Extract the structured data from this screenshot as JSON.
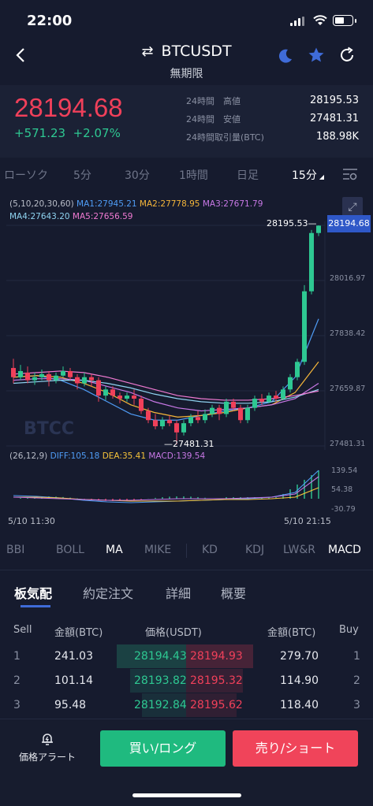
{
  "status_bar": {
    "time": "22:00"
  },
  "header": {
    "title": "BTCUSDT",
    "subtitle": "無期限"
  },
  "ticker": {
    "last_price": "28194.68",
    "change_abs": "+571.23",
    "change_pct": "+2.07%",
    "stats": [
      {
        "label": "24時間　高値",
        "value": "28195.53"
      },
      {
        "label": "24時間　安値",
        "value": "27481.31"
      },
      {
        "label": "24時間取引量(BTC)",
        "value": "188.98K"
      }
    ]
  },
  "timeframes": [
    "ローソク",
    "5分",
    "30分",
    "1時間",
    "日足",
    "15分"
  ],
  "chart": {
    "ma_legend": {
      "params": "(5,10,20,30,60)",
      "items": [
        {
          "label": "MA1:27945.21",
          "color": "#4f9cf5"
        },
        {
          "label": "MA2:27778.95",
          "color": "#f5b63a"
        },
        {
          "label": "MA3:27671.79",
          "color": "#c878e6"
        },
        {
          "label": "MA4:27643.20",
          "color": "#8fd3f0"
        },
        {
          "label": "MA5:27656.59",
          "color": "#f07ad2"
        }
      ]
    },
    "price_labels": [
      "28016.97",
      "27838.42",
      "27659.87",
      "27481.31"
    ],
    "current_price_tag": "28194.68",
    "high_marker": "28195.53",
    "low_marker": "27481.31",
    "watermark": "BTCC",
    "macd_legend": {
      "params": "(26,12,9)",
      "items": [
        {
          "label": "DIFF:105.18",
          "color": "#4f9cf5"
        },
        {
          "label": "DEA:35.41",
          "color": "#f5c23a"
        },
        {
          "label": "MACD:139.54",
          "color": "#c878e6"
        }
      ]
    },
    "macd_labels": [
      "139.54",
      "54.38",
      "-30.79"
    ],
    "time_labels": [
      "5/10 11:30",
      "5/10 21:15"
    ]
  },
  "indicators": [
    "BBI",
    "BOLL",
    "MA",
    "MIKE",
    "KD",
    "KDJ",
    "LW&R",
    "MACD"
  ],
  "tabs": [
    "板気配",
    "約定注文",
    "詳細",
    "概要"
  ],
  "orderbook": {
    "headers": {
      "sell": "Sell",
      "sell_amt": "金額(BTC)",
      "price": "価格(USDT)",
      "buy_amt": "金額(BTC)",
      "buy": "Buy"
    },
    "rows": [
      {
        "n_left": "1",
        "sell_amt": "241.03",
        "bid": "28194.43",
        "ask": "28194.93",
        "buy_amt": "279.70",
        "n_right": "1"
      },
      {
        "n_left": "2",
        "sell_amt": "101.14",
        "bid": "28193.82",
        "ask": "28195.32",
        "buy_amt": "114.90",
        "n_right": "2"
      },
      {
        "n_left": "3",
        "sell_amt": "95.48",
        "bid": "28192.84",
        "ask": "28195.62",
        "buy_amt": "118.40",
        "n_right": "3"
      }
    ]
  },
  "bottom": {
    "alert_label": "価格アラート",
    "buy_label": "買い/ロング",
    "sell_label": "売り/ショート"
  },
  "colors": {
    "up": "#2ec892",
    "down": "#f0405a",
    "buy_button": "#1fba7f",
    "sell_button": "#f0445a",
    "tag": "#2f58c8"
  }
}
